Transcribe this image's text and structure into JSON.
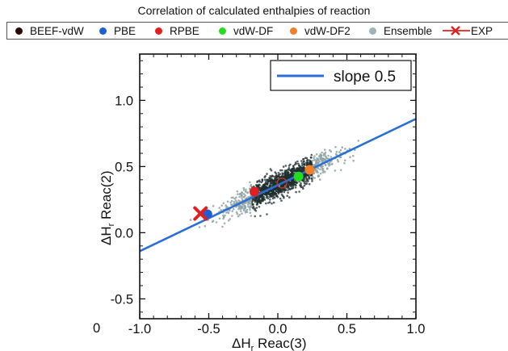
{
  "title": "Correlation of calculated enthalpies of reaction",
  "legend": [
    {
      "label": "BEEF-vdW",
      "color": "#2a0a06",
      "marker": "dot"
    },
    {
      "label": "PBE",
      "color": "#1f5fd6",
      "marker": "dot"
    },
    {
      "label": "RPBE",
      "color": "#e02020",
      "marker": "dot"
    },
    {
      "label": "vdW-DF",
      "color": "#22dd22",
      "marker": "dot"
    },
    {
      "label": "vdW-DF2",
      "color": "#f07f2a",
      "marker": "dot"
    },
    {
      "label": "Ensemble",
      "color": "#9fb4b8",
      "marker": "dot"
    },
    {
      "label": "EXP",
      "color": "#e02020",
      "marker": "x-line"
    }
  ],
  "stray_label": "0",
  "chart_data": {
    "type": "scatter",
    "title": "Correlation of calculated enthalpies of reaction",
    "xlabel": "ΔH",
    "xlabel_sub": "r",
    "xlabel_rest": " Reac(3)",
    "ylabel": "ΔH",
    "ylabel_sub": "r",
    "ylabel_rest": " Reac(2)",
    "xlim": [
      -1.0,
      1.0
    ],
    "ylim": [
      -0.65,
      1.35
    ],
    "x_ticks": [
      -1.0,
      -0.5,
      0.0,
      0.5,
      1.0
    ],
    "x_tick_labels": [
      "-1.0",
      "-0.5",
      "0.0",
      "0.5",
      "1.0"
    ],
    "y_ticks": [
      -0.5,
      0.0,
      0.5,
      1.0
    ],
    "y_tick_labels": [
      "-0.5",
      "0.0",
      "0.5",
      "1.0"
    ],
    "fit_line": {
      "label": "slope 0.5",
      "slope": 0.5,
      "intercept": 0.36,
      "color": "#2a6fd6"
    },
    "ensemble": {
      "name": "Ensemble",
      "color": "#9fb4b8",
      "center": [
        0.03,
        0.375
      ],
      "extent_x": [
        -0.78,
        0.62
      ],
      "slope": 0.5
    },
    "series": [
      {
        "name": "BEEF-vdW",
        "x": 0.03,
        "y": 0.375,
        "color": "#2a0a06"
      },
      {
        "name": "PBE",
        "x": -0.51,
        "y": 0.14,
        "color": "#1f5fd6"
      },
      {
        "name": "RPBE",
        "x": -0.17,
        "y": 0.31,
        "color": "#e02020"
      },
      {
        "name": "vdW-DF",
        "x": 0.15,
        "y": 0.425,
        "color": "#22dd22"
      },
      {
        "name": "vdW-DF2",
        "x": 0.23,
        "y": 0.475,
        "color": "#f07f2a"
      },
      {
        "name": "EXP",
        "x": -0.56,
        "y": 0.145,
        "color": "#e02020",
        "marker": "x"
      }
    ],
    "legend_position": "top-right (inside plot)",
    "grid": false
  }
}
